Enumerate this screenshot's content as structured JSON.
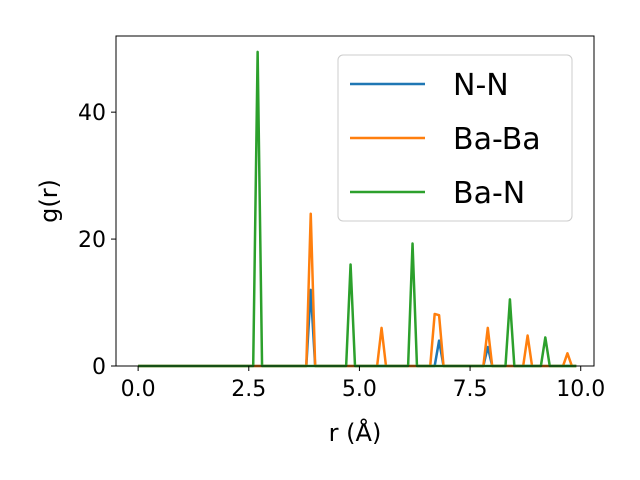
{
  "chart_data": {
    "type": "line",
    "title": "",
    "xlabel": "r (Å)",
    "ylabel": "g(r)",
    "xlim": [
      -0.5,
      10.3
    ],
    "ylim": [
      0,
      52
    ],
    "xticks": [
      0.0,
      2.5,
      5.0,
      7.5,
      10.0
    ],
    "xtick_labels": [
      "0.0",
      "2.5",
      "5.0",
      "7.5",
      "10.0"
    ],
    "yticks": [
      0,
      20,
      40
    ],
    "ytick_labels": [
      "0",
      "20",
      "40"
    ],
    "grid": false,
    "legend_position": "top-right",
    "series": [
      {
        "name": "N-N",
        "color": "#1f77b4",
        "x": [
          0.0,
          3.8,
          3.9,
          4.0,
          6.7,
          6.8,
          6.9,
          7.8,
          7.9,
          8.0,
          9.9
        ],
        "y": [
          0,
          0,
          12,
          0,
          0,
          4,
          0,
          0,
          3,
          0,
          0
        ]
      },
      {
        "name": "Ba-Ba",
        "color": "#ff7f0e",
        "x": [
          0.0,
          3.8,
          3.9,
          4.0,
          5.4,
          5.5,
          5.6,
          6.6,
          6.7,
          6.8,
          6.9,
          7.8,
          7.9,
          8.0,
          8.7,
          8.8,
          8.9,
          9.6,
          9.7,
          9.8,
          9.9
        ],
        "y": [
          0,
          0,
          24,
          0,
          0,
          6,
          0,
          0,
          8.2,
          8,
          0,
          0,
          6,
          0,
          0,
          4.8,
          0,
          0,
          2,
          0,
          0
        ]
      },
      {
        "name": "Ba-N",
        "color": "#2ca02c",
        "x": [
          0.0,
          2.6,
          2.7,
          2.8,
          4.7,
          4.8,
          4.9,
          6.1,
          6.2,
          6.3,
          8.3,
          8.4,
          8.5,
          9.1,
          9.2,
          9.3,
          9.9
        ],
        "y": [
          0,
          0,
          49.5,
          0,
          0,
          16,
          0,
          0,
          19.3,
          0,
          0,
          10.5,
          0,
          0,
          4.5,
          0,
          0
        ]
      }
    ]
  }
}
